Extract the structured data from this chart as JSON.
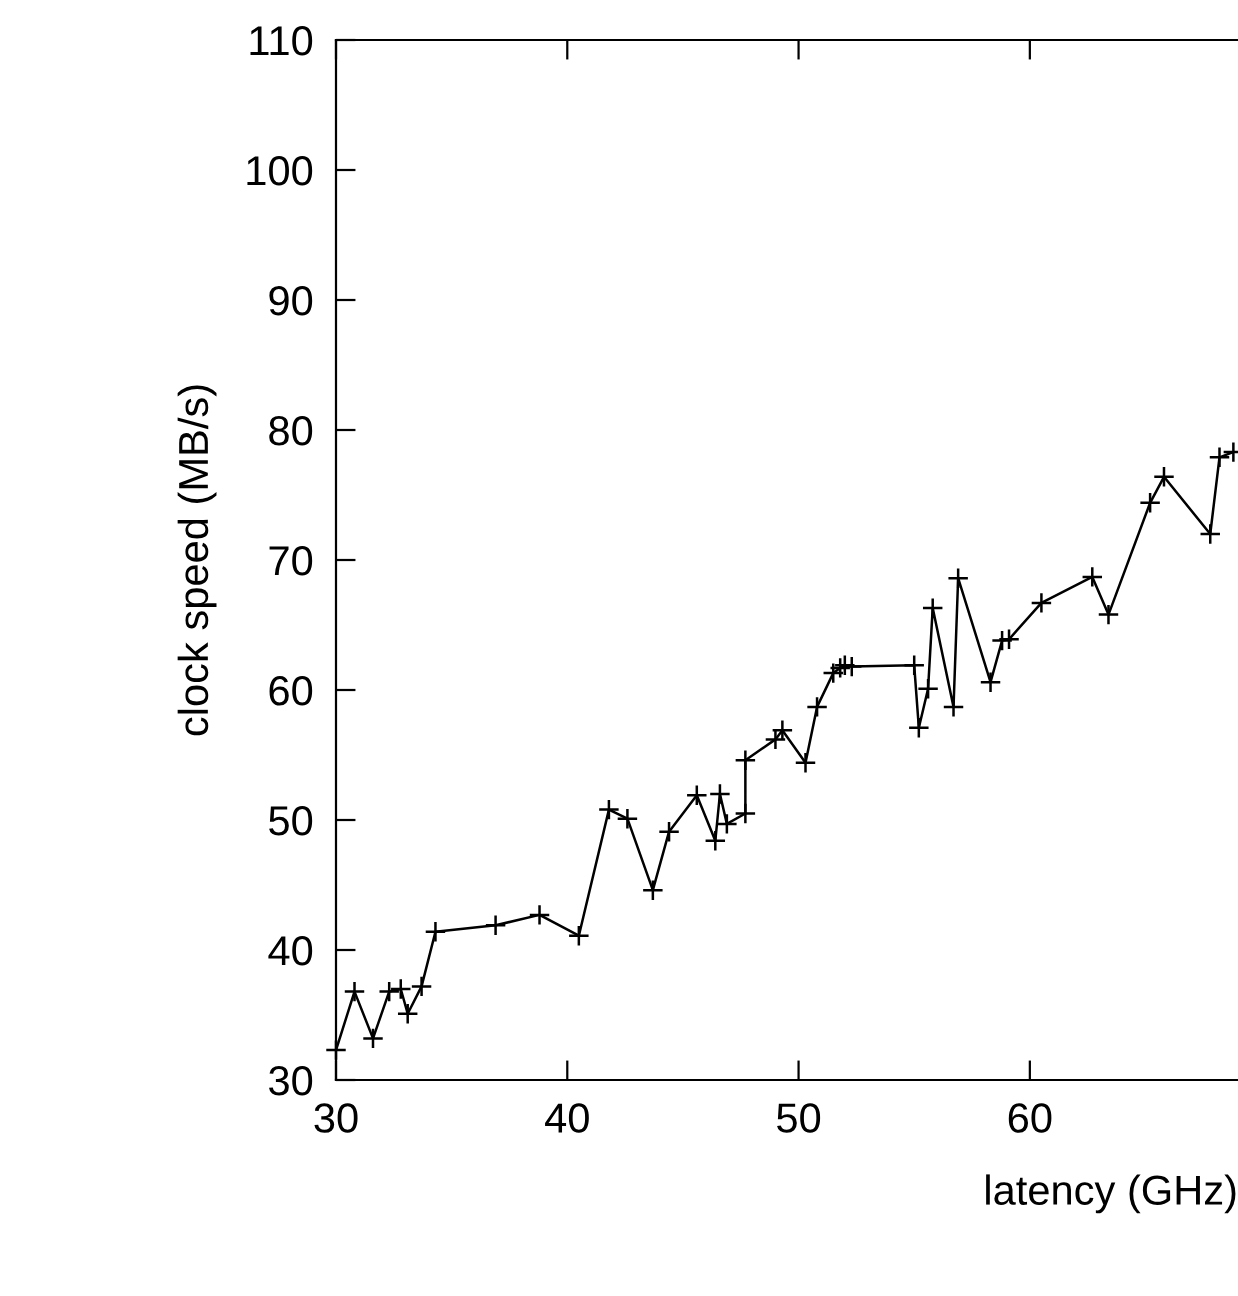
{
  "chart_data": {
    "type": "line",
    "xlabel": "latency (GHz)",
    "ylabel": "clock speed (MB/s)",
    "xlim": [
      30,
      69
    ],
    "ylim": [
      30,
      110
    ],
    "xticks": [
      30,
      40,
      50,
      60
    ],
    "yticks": [
      30,
      40,
      50,
      60,
      70,
      80,
      90,
      100,
      110
    ],
    "grid": false,
    "marker": "cross",
    "line_style": "solid",
    "series": [
      {
        "color": "#000000",
        "x": [
          30.0,
          30.8,
          31.6,
          32.3,
          32.8,
          33.1,
          33.7,
          34.3,
          36.9,
          38.8,
          40.5,
          41.8,
          42.6,
          43.7,
          44.4,
          45.6,
          46.4,
          46.6,
          46.9,
          47.7,
          47.7,
          49.0,
          49.3,
          50.3,
          50.8,
          51.5,
          51.8,
          52.0,
          52.3,
          55.0,
          55.2,
          55.6,
          55.8,
          56.7,
          56.9,
          58.3,
          58.8,
          59.1,
          60.5,
          62.7,
          63.4,
          65.2,
          65.8,
          67.8,
          68.2,
          68.8
        ],
        "values": [
          32.3,
          36.8,
          33.2,
          36.8,
          37.0,
          35.1,
          37.2,
          41.4,
          41.9,
          42.7,
          41.1,
          50.8,
          50.1,
          44.6,
          49.1,
          51.9,
          48.4,
          52.0,
          49.7,
          50.5,
          54.6,
          56.2,
          56.9,
          54.4,
          58.7,
          61.3,
          61.7,
          61.9,
          61.8,
          61.9,
          57.1,
          60.1,
          66.3,
          58.7,
          68.6,
          60.6,
          63.8,
          63.9,
          66.7,
          68.7,
          65.8,
          74.4,
          76.4,
          72.0,
          77.9,
          78.3
        ]
      }
    ]
  }
}
